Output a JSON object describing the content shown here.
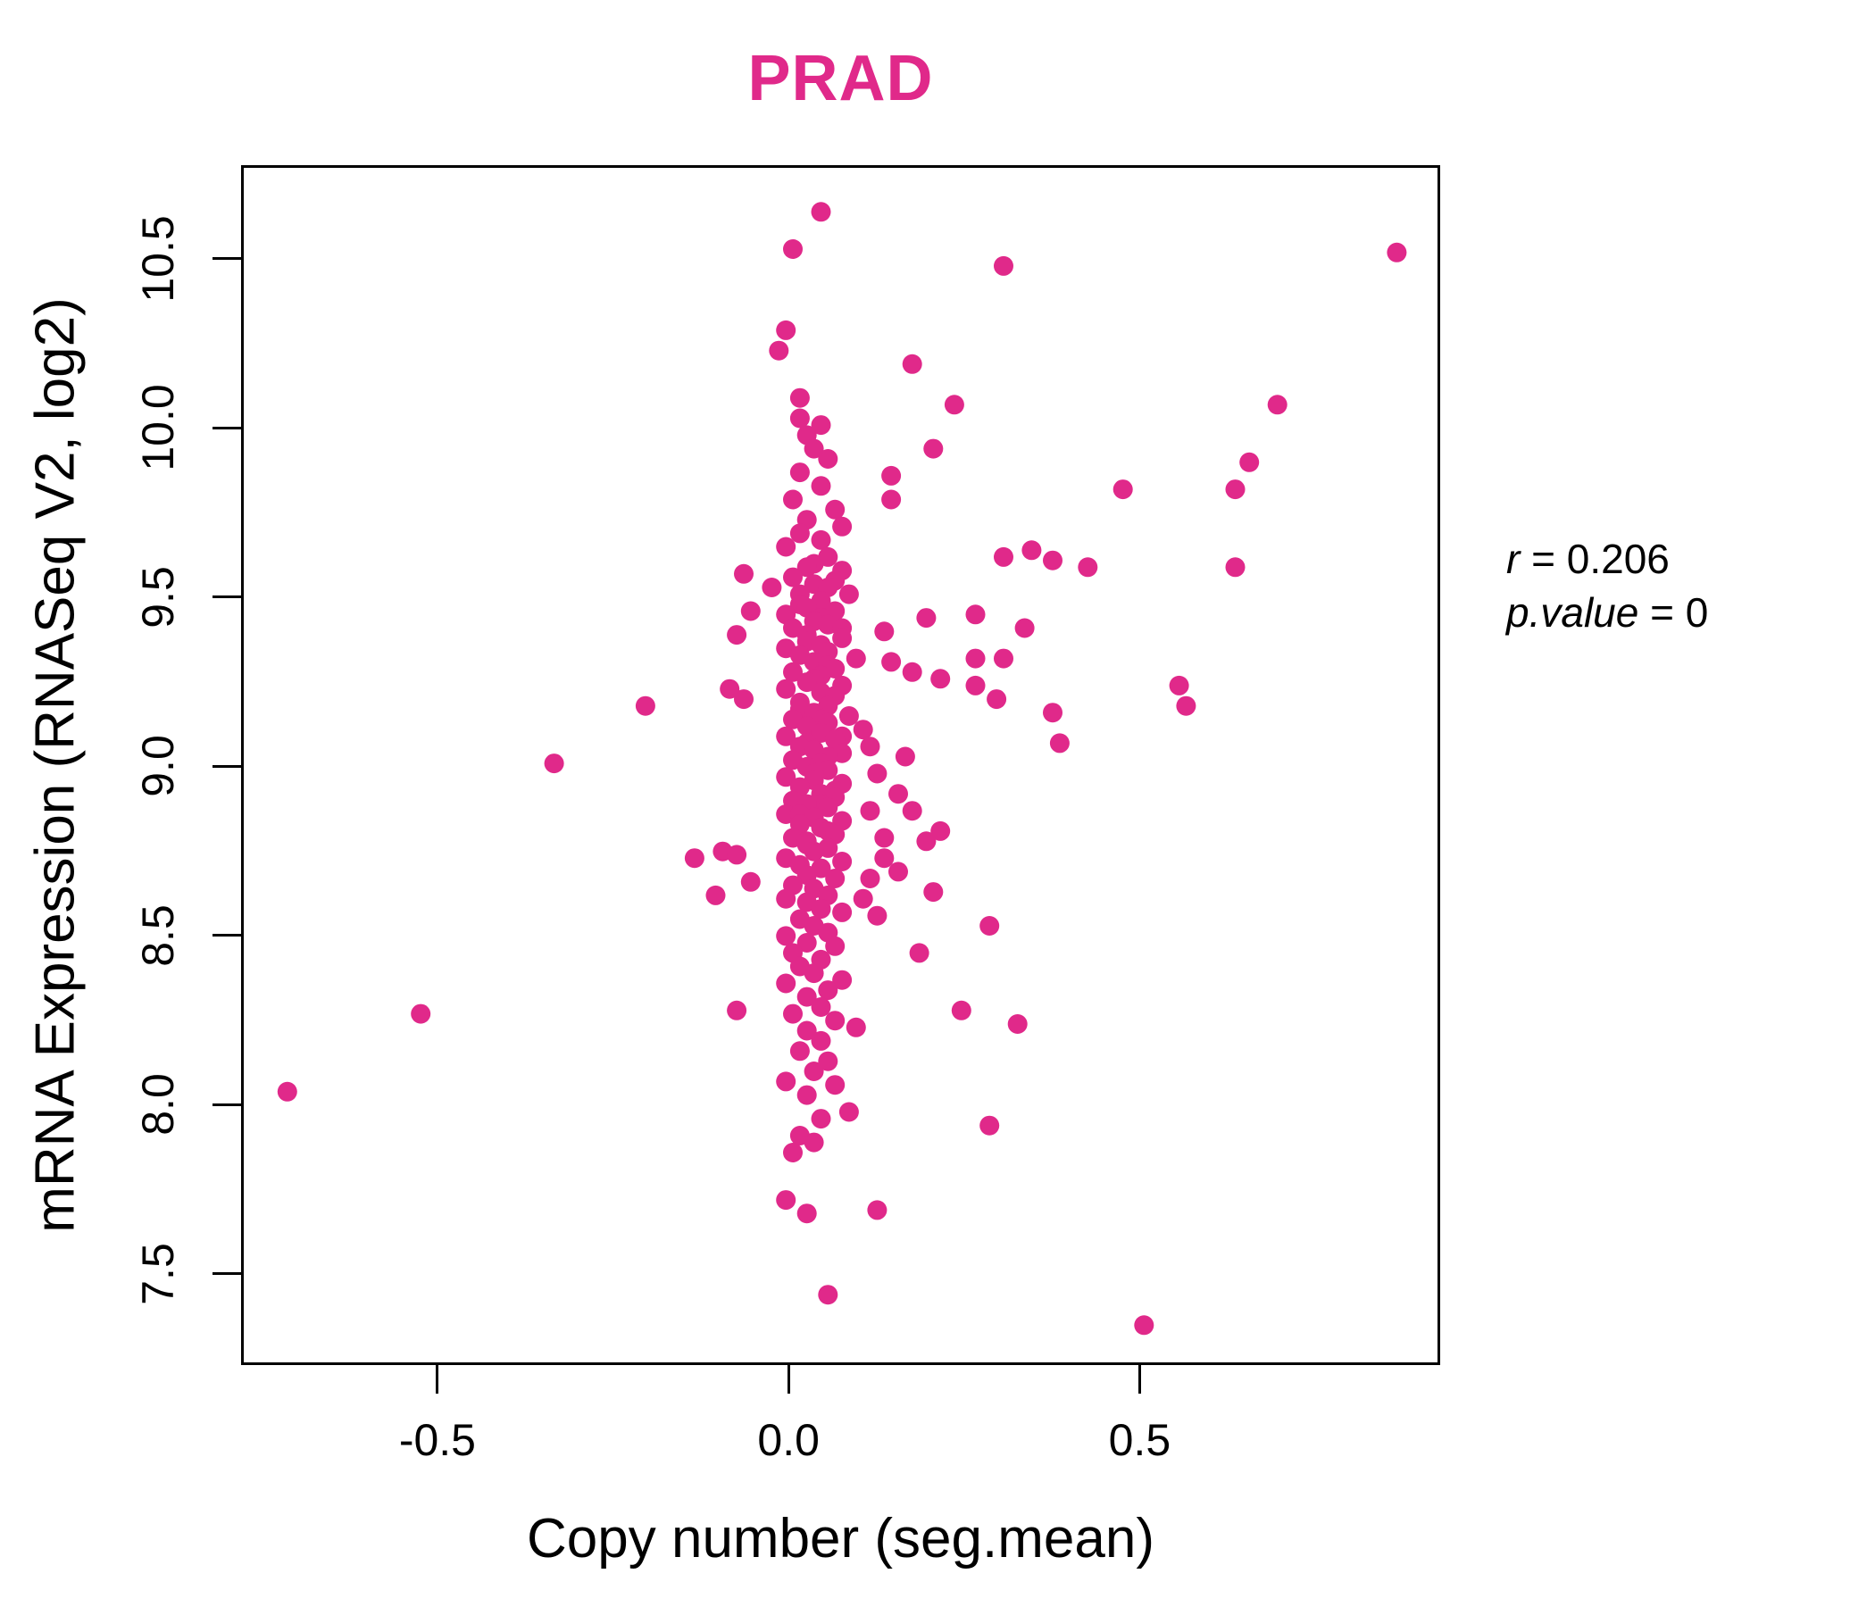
{
  "colors": {
    "accent": "#E0298A",
    "text": "#000000",
    "background": "#FFFFFF"
  },
  "chart_data": {
    "type": "scatter",
    "title": "PRAD",
    "xlabel": "Copy number (seg.mean)",
    "ylabel": "mRNA Expression (RNASeq V2, log2)",
    "xlim": [
      -0.772,
      0.928
    ],
    "ylim": [
      7.23,
      10.76
    ],
    "grid": false,
    "legend": false,
    "point_color": "#E0298A",
    "point_radius": 11,
    "x_ticks": [
      {
        "v": -0.5,
        "label": "-0.5"
      },
      {
        "v": 0.0,
        "label": "0.0"
      },
      {
        "v": 0.5,
        "label": "0.5"
      }
    ],
    "y_ticks": [
      {
        "v": 7.5,
        "label": "7.5"
      },
      {
        "v": 8.0,
        "label": "8.0"
      },
      {
        "v": 8.5,
        "label": "8.5"
      },
      {
        "v": 9.0,
        "label": "9.0"
      },
      {
        "v": 9.5,
        "label": "9.5"
      },
      {
        "v": 10.0,
        "label": "10.0"
      },
      {
        "v": 10.5,
        "label": "10.5"
      }
    ],
    "annotation": {
      "r_var": "r",
      "r_rest": " = 0.206",
      "p_var": "p.value",
      "p_rest": " = 0"
    },
    "points": [
      [
        0.05,
        10.63
      ],
      [
        0.01,
        10.52
      ],
      [
        0.87,
        10.51
      ],
      [
        0.31,
        10.47
      ],
      [
        0.0,
        10.28
      ],
      [
        -0.01,
        10.22
      ],
      [
        0.18,
        10.18
      ],
      [
        0.02,
        10.08
      ],
      [
        0.24,
        10.06
      ],
      [
        0.7,
        10.06
      ],
      [
        0.02,
        10.02
      ],
      [
        0.05,
        10.0
      ],
      [
        0.03,
        9.97
      ],
      [
        0.04,
        9.93
      ],
      [
        0.21,
        9.93
      ],
      [
        0.66,
        9.89
      ],
      [
        0.06,
        9.9
      ],
      [
        0.02,
        9.86
      ],
      [
        0.15,
        9.85
      ],
      [
        0.05,
        9.82
      ],
      [
        0.48,
        9.81
      ],
      [
        0.64,
        9.81
      ],
      [
        0.15,
        9.78
      ],
      [
        0.01,
        9.78
      ],
      [
        0.07,
        9.75
      ],
      [
        0.03,
        9.72
      ],
      [
        0.08,
        9.7
      ],
      [
        0.02,
        9.68
      ],
      [
        0.05,
        9.66
      ],
      [
        0.0,
        9.64
      ],
      [
        0.35,
        9.63
      ],
      [
        0.31,
        9.61
      ],
      [
        0.38,
        9.6
      ],
      [
        0.06,
        9.61
      ],
      [
        0.04,
        9.59
      ],
      [
        0.43,
        9.58
      ],
      [
        0.64,
        9.58
      ],
      [
        -0.06,
        9.56
      ],
      [
        0.03,
        9.58
      ],
      [
        0.08,
        9.57
      ],
      [
        0.01,
        9.55
      ],
      [
        0.07,
        9.54
      ],
      [
        0.04,
        9.53
      ],
      [
        0.06,
        9.52
      ],
      [
        -0.02,
        9.52
      ],
      [
        0.02,
        9.5
      ],
      [
        0.09,
        9.5
      ],
      [
        0.05,
        9.48
      ],
      [
        0.02,
        9.47
      ],
      [
        0.03,
        9.46
      ],
      [
        0.07,
        9.45
      ],
      [
        -0.05,
        9.45
      ],
      [
        0.0,
        9.44
      ],
      [
        0.27,
        9.44
      ],
      [
        0.2,
        9.43
      ],
      [
        0.05,
        9.43
      ],
      [
        0.04,
        9.42
      ],
      [
        0.06,
        9.41
      ],
      [
        0.01,
        9.4
      ],
      [
        0.34,
        9.4
      ],
      [
        0.08,
        9.4
      ],
      [
        0.14,
        9.39
      ],
      [
        -0.07,
        9.38
      ],
      [
        0.03,
        9.38
      ],
      [
        0.08,
        9.37
      ],
      [
        0.03,
        9.36
      ],
      [
        0.05,
        9.35
      ],
      [
        0.0,
        9.34
      ],
      [
        0.06,
        9.33
      ],
      [
        0.02,
        9.32
      ],
      [
        0.1,
        9.31
      ],
      [
        0.27,
        9.31
      ],
      [
        0.31,
        9.31
      ],
      [
        0.04,
        9.3
      ],
      [
        0.15,
        9.3
      ],
      [
        0.06,
        9.29
      ],
      [
        0.07,
        9.28
      ],
      [
        0.01,
        9.27
      ],
      [
        0.18,
        9.27
      ],
      [
        0.05,
        9.26
      ],
      [
        0.22,
        9.25
      ],
      [
        0.04,
        9.25
      ],
      [
        0.03,
        9.24
      ],
      [
        0.08,
        9.23
      ],
      [
        0.27,
        9.23
      ],
      [
        0.56,
        9.23
      ],
      [
        0.0,
        9.22
      ],
      [
        -0.08,
        9.22
      ],
      [
        0.05,
        9.21
      ],
      [
        0.07,
        9.2
      ],
      [
        0.3,
        9.19
      ],
      [
        -0.06,
        9.19
      ],
      [
        0.02,
        9.18
      ],
      [
        0.57,
        9.17
      ],
      [
        0.06,
        9.17
      ],
      [
        -0.2,
        9.17
      ],
      [
        0.02,
        9.16
      ],
      [
        0.04,
        9.15
      ],
      [
        0.38,
        9.15
      ],
      [
        0.09,
        9.14
      ],
      [
        0.01,
        9.13
      ],
      [
        0.05,
        9.13
      ],
      [
        0.06,
        9.12
      ],
      [
        0.03,
        9.11
      ],
      [
        0.11,
        9.1
      ],
      [
        0.05,
        9.09
      ],
      [
        0.0,
        9.08
      ],
      [
        0.08,
        9.08
      ],
      [
        0.07,
        9.07
      ],
      [
        0.03,
        9.06
      ],
      [
        0.39,
        9.06
      ],
      [
        0.02,
        9.05
      ],
      [
        0.12,
        9.05
      ],
      [
        0.04,
        9.04
      ],
      [
        0.08,
        9.03
      ],
      [
        0.17,
        9.02
      ],
      [
        0.06,
        9.02
      ],
      [
        0.01,
        9.01
      ],
      [
        -0.33,
        9.0
      ],
      [
        0.05,
        9.0
      ],
      [
        0.03,
        8.99
      ],
      [
        0.06,
        8.98
      ],
      [
        0.13,
        8.97
      ],
      [
        0.04,
        8.97
      ],
      [
        0.0,
        8.96
      ],
      [
        0.04,
        8.95
      ],
      [
        0.08,
        8.94
      ],
      [
        0.02,
        8.93
      ],
      [
        0.07,
        8.92
      ],
      [
        0.16,
        8.91
      ],
      [
        0.05,
        8.91
      ],
      [
        0.07,
        8.9
      ],
      [
        0.01,
        8.89
      ],
      [
        0.05,
        8.88
      ],
      [
        0.03,
        8.88
      ],
      [
        0.06,
        8.87
      ],
      [
        0.12,
        8.86
      ],
      [
        0.18,
        8.86
      ],
      [
        0.0,
        8.85
      ],
      [
        0.02,
        8.85
      ],
      [
        0.04,
        8.84
      ],
      [
        0.08,
        8.83
      ],
      [
        0.02,
        8.82
      ],
      [
        0.05,
        8.81
      ],
      [
        0.22,
        8.8
      ],
      [
        0.06,
        8.8
      ],
      [
        0.07,
        8.79
      ],
      [
        0.14,
        8.78
      ],
      [
        0.01,
        8.78
      ],
      [
        0.2,
        8.77
      ],
      [
        0.03,
        8.77
      ],
      [
        0.03,
        8.76
      ],
      [
        0.06,
        8.75
      ],
      [
        -0.09,
        8.74
      ],
      [
        0.04,
        8.74
      ],
      [
        -0.07,
        8.73
      ],
      [
        0.0,
        8.72
      ],
      [
        0.14,
        8.72
      ],
      [
        -0.13,
        8.72
      ],
      [
        0.08,
        8.71
      ],
      [
        0.02,
        8.7
      ],
      [
        0.05,
        8.69
      ],
      [
        0.16,
        8.68
      ],
      [
        0.03,
        8.67
      ],
      [
        0.07,
        8.66
      ],
      [
        0.12,
        8.66
      ],
      [
        -0.05,
        8.65
      ],
      [
        0.01,
        8.64
      ],
      [
        0.04,
        8.63
      ],
      [
        0.21,
        8.62
      ],
      [
        -0.1,
        8.61
      ],
      [
        0.06,
        8.61
      ],
      [
        0.0,
        8.6
      ],
      [
        0.11,
        8.6
      ],
      [
        0.03,
        8.59
      ],
      [
        0.05,
        8.57
      ],
      [
        0.08,
        8.56
      ],
      [
        0.13,
        8.55
      ],
      [
        0.02,
        8.54
      ],
      [
        0.29,
        8.52
      ],
      [
        0.04,
        8.52
      ],
      [
        0.06,
        8.5
      ],
      [
        0.0,
        8.49
      ],
      [
        0.03,
        8.47
      ],
      [
        0.07,
        8.46
      ],
      [
        0.19,
        8.44
      ],
      [
        0.01,
        8.44
      ],
      [
        0.05,
        8.42
      ],
      [
        0.02,
        8.4
      ],
      [
        0.04,
        8.38
      ],
      [
        0.08,
        8.36
      ],
      [
        0.0,
        8.35
      ],
      [
        0.06,
        8.33
      ],
      [
        0.03,
        8.31
      ],
      [
        0.05,
        8.28
      ],
      [
        -0.07,
        8.27
      ],
      [
        0.25,
        8.27
      ],
      [
        -0.52,
        8.26
      ],
      [
        0.01,
        8.26
      ],
      [
        0.07,
        8.24
      ],
      [
        0.33,
        8.23
      ],
      [
        0.1,
        8.22
      ],
      [
        0.03,
        8.21
      ],
      [
        0.05,
        8.18
      ],
      [
        0.02,
        8.15
      ],
      [
        0.06,
        8.12
      ],
      [
        0.04,
        8.09
      ],
      [
        0.0,
        8.06
      ],
      [
        0.07,
        8.05
      ],
      [
        -0.71,
        8.03
      ],
      [
        0.03,
        8.02
      ],
      [
        0.09,
        7.97
      ],
      [
        0.05,
        7.95
      ],
      [
        0.29,
        7.93
      ],
      [
        0.02,
        7.9
      ],
      [
        0.04,
        7.88
      ],
      [
        0.01,
        7.85
      ],
      [
        0.0,
        7.71
      ],
      [
        0.03,
        7.67
      ],
      [
        0.13,
        7.68
      ],
      [
        0.06,
        7.43
      ],
      [
        0.51,
        7.34
      ]
    ]
  }
}
